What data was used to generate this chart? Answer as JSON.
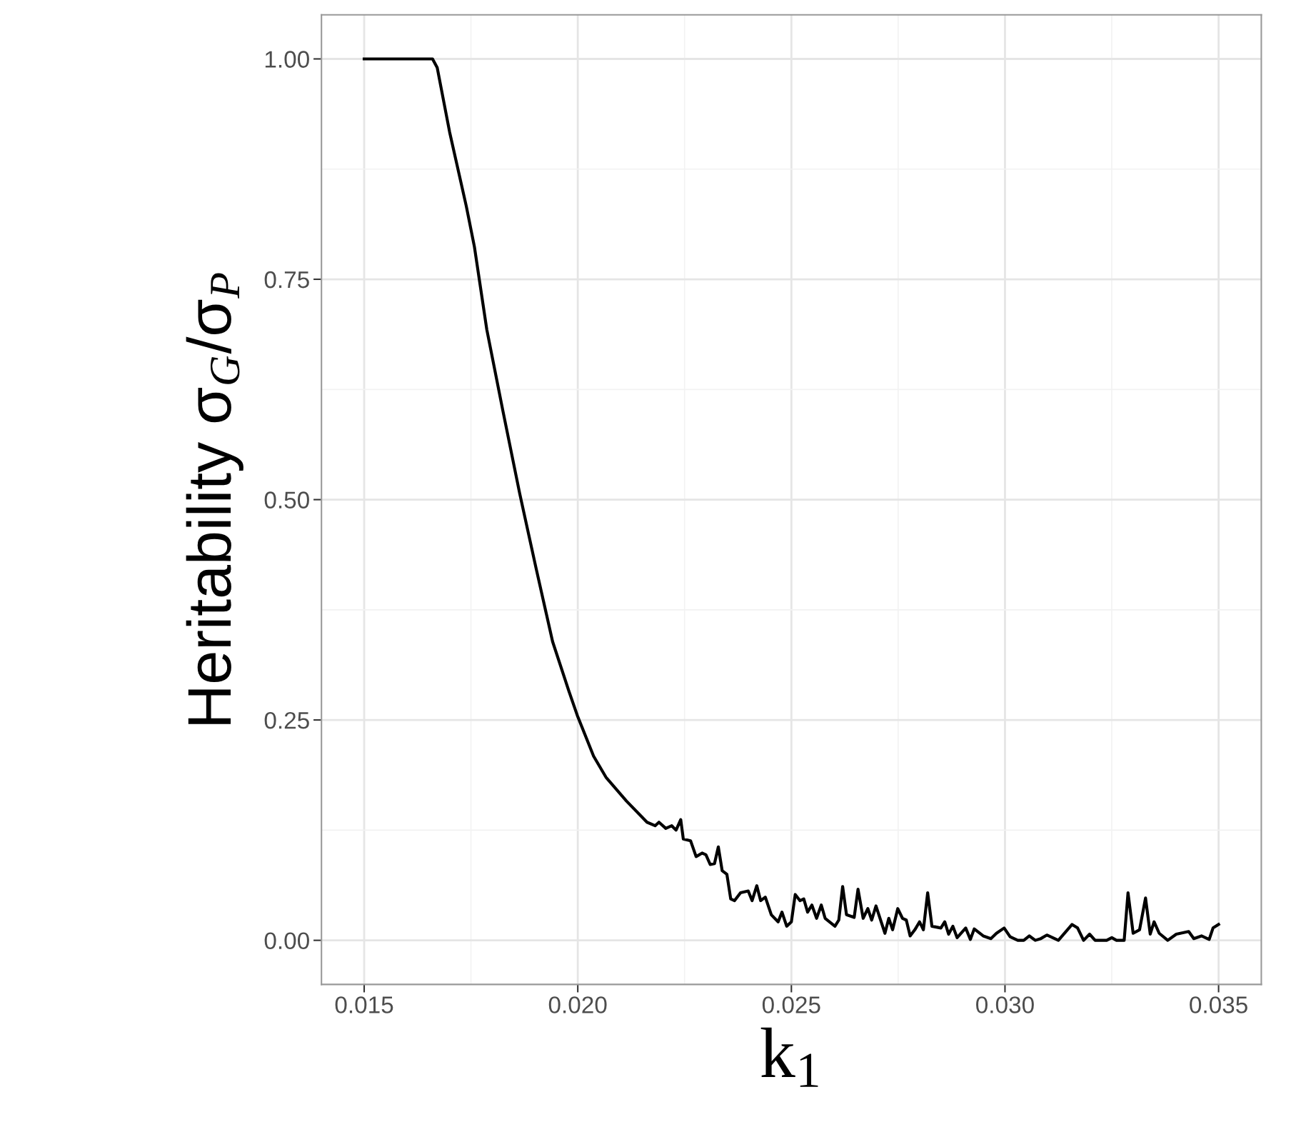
{
  "chart_data": {
    "type": "line",
    "xlabel": "k$_{1}$",
    "ylabel": "Heritability σ$_{G}$/σ$_{P}$",
    "x": [
      0.015,
      0.0166,
      0.01671,
      0.017,
      0.01739,
      0.01758,
      0.01787,
      0.01825,
      0.01864,
      0.01902,
      0.01941,
      0.01979,
      0.01999,
      0.02037,
      0.02066,
      0.02114,
      0.02162,
      0.02181,
      0.0219,
      0.02206,
      0.0222,
      0.0223,
      0.02241,
      0.02247,
      0.02264,
      0.02277,
      0.02291,
      0.023,
      0.0231,
      0.0232,
      0.02329,
      0.02338,
      0.02349,
      0.02358,
      0.02367,
      0.02381,
      0.02399,
      0.02408,
      0.02419,
      0.02428,
      0.02439,
      0.02453,
      0.02469,
      0.02478,
      0.02489,
      0.025,
      0.02509,
      0.0252,
      0.02529,
      0.02538,
      0.02548,
      0.02559,
      0.0257,
      0.02579,
      0.02602,
      0.02611,
      0.0262,
      0.02629,
      0.02647,
      0.02656,
      0.02668,
      0.02679,
      0.02688,
      0.02698,
      0.02719,
      0.02728,
      0.02737,
      0.02749,
      0.0276,
      0.02769,
      0.02778,
      0.02789,
      0.028,
      0.02809,
      0.02819,
      0.02829,
      0.0285,
      0.02859,
      0.02868,
      0.02878,
      0.02888,
      0.02908,
      0.02919,
      0.02928,
      0.02949,
      0.02967,
      0.0298,
      0.02998,
      0.03012,
      0.0303,
      0.03044,
      0.03057,
      0.03071,
      0.03084,
      0.03098,
      0.03125,
      0.03157,
      0.0317,
      0.03184,
      0.03198,
      0.03211,
      0.03238,
      0.0325,
      0.03261,
      0.03279,
      0.03288,
      0.033,
      0.03315,
      0.03329,
      0.0334,
      0.03349,
      0.03361,
      0.03381,
      0.03401,
      0.0343,
      0.03442,
      0.0346,
      0.03478,
      0.03487,
      0.035
    ],
    "series": [
      {
        "color": "#000000",
        "values": [
          1.0,
          1.0,
          0.99,
          0.917,
          0.833,
          0.787,
          0.693,
          0.6,
          0.507,
          0.423,
          0.339,
          0.283,
          0.255,
          0.209,
          0.185,
          0.158,
          0.134,
          0.13,
          0.134,
          0.127,
          0.13,
          0.125,
          0.137,
          0.115,
          0.113,
          0.095,
          0.099,
          0.097,
          0.086,
          0.087,
          0.106,
          0.079,
          0.075,
          0.047,
          0.045,
          0.054,
          0.056,
          0.045,
          0.062,
          0.045,
          0.049,
          0.029,
          0.021,
          0.032,
          0.016,
          0.021,
          0.052,
          0.045,
          0.047,
          0.032,
          0.04,
          0.025,
          0.04,
          0.025,
          0.016,
          0.023,
          0.061,
          0.029,
          0.026,
          0.058,
          0.025,
          0.036,
          0.023,
          0.039,
          0.008,
          0.025,
          0.012,
          0.036,
          0.025,
          0.023,
          0.005,
          0.012,
          0.021,
          0.012,
          0.054,
          0.016,
          0.014,
          0.021,
          0.007,
          0.016,
          0.003,
          0.014,
          0.001,
          0.013,
          0.005,
          0.002,
          0.008,
          0.014,
          0.004,
          0.0,
          0.0,
          0.005,
          0.0,
          0.002,
          0.006,
          0.0,
          0.018,
          0.014,
          0.0,
          0.007,
          0.0,
          0.0,
          0.003,
          0.0,
          0.0,
          0.054,
          0.008,
          0.012,
          0.048,
          0.007,
          0.021,
          0.008,
          0.0,
          0.007,
          0.01,
          0.002,
          0.005,
          0.001,
          0.014,
          0.018
        ]
      }
    ],
    "xlim": [
      0.014,
      0.036
    ],
    "ylim": [
      -0.05,
      1.05
    ],
    "xticks": [
      {
        "value": 0.015,
        "label": "0.015"
      },
      {
        "value": 0.0175,
        "label": null
      },
      {
        "value": 0.02,
        "label": "0.020"
      },
      {
        "value": 0.0225,
        "label": null
      },
      {
        "value": 0.025,
        "label": "0.025"
      },
      {
        "value": 0.0275,
        "label": null
      },
      {
        "value": 0.03,
        "label": "0.030"
      },
      {
        "value": 0.0325,
        "label": null
      },
      {
        "value": 0.035,
        "label": "0.035"
      }
    ],
    "yticks": [
      {
        "value": 0,
        "label": "0.00"
      },
      {
        "value": 0.125,
        "label": null
      },
      {
        "value": 0.25,
        "label": "0.25"
      },
      {
        "value": 0.375,
        "label": null
      },
      {
        "value": 0.5,
        "label": "0.50"
      },
      {
        "value": 0.625,
        "label": null
      },
      {
        "value": 0.75,
        "label": "0.75"
      },
      {
        "value": 0.875,
        "label": null
      },
      {
        "value": 1,
        "label": "1.00"
      }
    ],
    "grid": true,
    "legend": false,
    "marker": "none",
    "line_style": "solid"
  }
}
